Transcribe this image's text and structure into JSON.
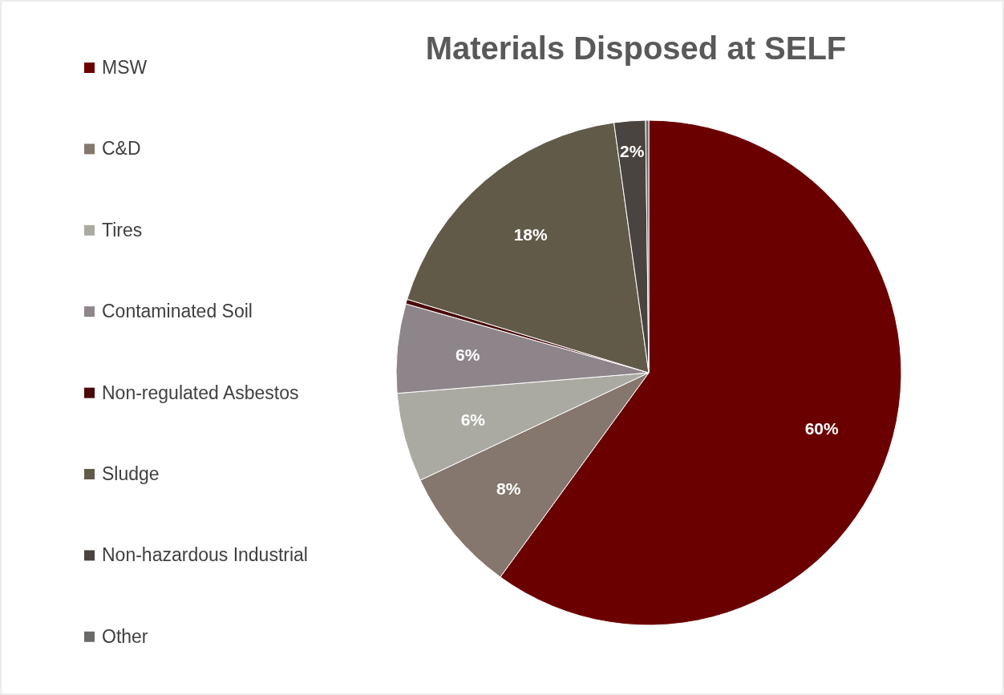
{
  "chart_data": {
    "type": "pie",
    "title": "Materials Disposed at SELF",
    "categories": [
      "MSW",
      "C&D",
      "Tires",
      "Contaminated Soil",
      "Non-regulated Asbestos",
      "Sludge",
      "Non-hazardous Industrial",
      "Other"
    ],
    "values": [
      60,
      8,
      5.7,
      5.7,
      0.3,
      18.1,
      2,
      0.2
    ],
    "colors": [
      "#6b0000",
      "#85776d",
      "#aaaaa2",
      "#8d858a",
      "#4a0a0a",
      "#625a49",
      "#4a4440",
      "#6a6a68"
    ],
    "value_labels": [
      "60%",
      "8%",
      "6%",
      "6%",
      null,
      "18%",
      "2%",
      null
    ],
    "legend": "left"
  }
}
